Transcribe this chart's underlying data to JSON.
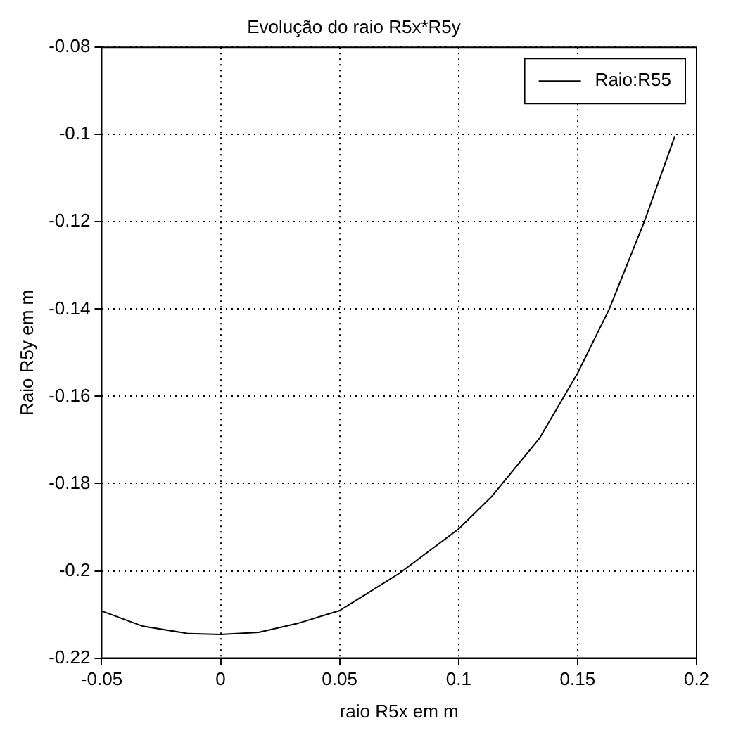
{
  "chart_data": {
    "type": "line",
    "title": "Evolução do raio R5x*R5y",
    "xlabel": "raio R5x em m",
    "ylabel": "Raio R5y em m",
    "x": [
      -0.05,
      -0.0326,
      -0.0134,
      0,
      0.016,
      0.032,
      0.05,
      0.075,
      0.1,
      0.114,
      0.134,
      0.15,
      0.1633,
      0.178,
      0.1908
    ],
    "series": [
      {
        "name": "Raio:R55",
        "color": "#000000",
        "values": [
          -0.2092,
          -0.2127,
          -0.2144,
          -0.2146,
          -0.2141,
          -0.2121,
          -0.2091,
          -0.2006,
          -0.1904,
          -0.1829,
          -0.1696,
          -0.1547,
          -0.14,
          -0.12,
          -0.1005
        ]
      }
    ],
    "xlim": [
      -0.05,
      0.2
    ],
    "xticks": [
      -0.05,
      0,
      0.05,
      0.1,
      0.15,
      0.2
    ],
    "ylim": [
      -0.22,
      -0.08
    ],
    "yticks": [
      -0.22,
      -0.2,
      -0.18,
      -0.16,
      -0.14,
      -0.12,
      -0.1,
      -0.08
    ],
    "grid": true,
    "legend": "top right",
    "marker": "none",
    "line_style": "solid"
  }
}
